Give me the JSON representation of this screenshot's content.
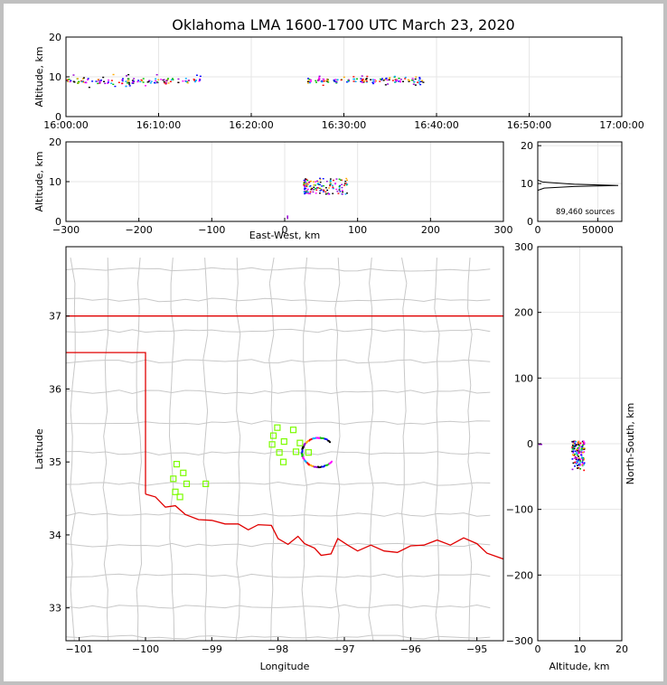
{
  "chart_data": {
    "type": "scatter",
    "title": "Oklahoma LMA 1600-1700 UTC March 23, 2020",
    "colors": {
      "state_border": "#e00000",
      "county_border": "#c8c8c8",
      "station": "#7cfc00",
      "time_line": "#000000"
    },
    "panels": [
      {
        "id": "time-altitude",
        "ylabel": "Altitude, km",
        "ylim": [
          0,
          20
        ],
        "yticks": [
          0,
          10,
          20
        ],
        "xlim_minutes": [
          0,
          60
        ],
        "xticks": [
          {
            "value": 0,
            "label": "16:00:00"
          },
          {
            "value": 10,
            "label": "16:10:00"
          },
          {
            "value": 20,
            "label": "16:20:00"
          },
          {
            "value": 30,
            "label": "16:30:00"
          },
          {
            "value": 40,
            "label": "16:40:00"
          },
          {
            "value": 50,
            "label": "16:50:00"
          },
          {
            "value": 60,
            "label": "17:00:00"
          }
        ],
        "source_clusters": [
          {
            "t_start": 0.0,
            "t_end": 14.5,
            "alt_min": 7.5,
            "alt_max": 10.8
          },
          {
            "t_start": 26.0,
            "t_end": 38.5,
            "alt_min": 8.0,
            "alt_max": 10.5
          }
        ]
      },
      {
        "id": "ew-altitude",
        "xlabel": "East-West, km",
        "ylabel": "Altitude, km",
        "xlim": [
          -300,
          300
        ],
        "ylim": [
          0,
          20
        ],
        "xticks": [
          -300,
          -200,
          -100,
          0,
          100,
          200,
          300
        ],
        "xtick_labels": [
          "−300",
          "−200",
          "−100",
          "0",
          "100",
          "200",
          "300"
        ],
        "yticks": [
          0,
          10,
          20
        ],
        "source_clusters": [
          {
            "x_min": 25,
            "x_max": 85,
            "alt_min": 7.0,
            "alt_max": 11.0
          }
        ]
      },
      {
        "id": "altitude-histogram",
        "xlim": [
          0,
          70000
        ],
        "ylim": [
          0,
          21
        ],
        "xticks": [
          0,
          50000
        ],
        "yticks": [
          0,
          10,
          20
        ],
        "annotation": "89,460 sources",
        "peak_altitude_km": 9.5,
        "peak_count": 67000
      },
      {
        "id": "plan-view",
        "xlabel": "Longitude",
        "ylabel": "Latitude",
        "xlim": [
          -101.2,
          -94.6
        ],
        "ylim": [
          32.55,
          37.95
        ],
        "xticks": [
          -101,
          -100,
          -99,
          -98,
          -97,
          -96,
          -95
        ],
        "xtick_labels": [
          "−101",
          "−100",
          "−99",
          "−98",
          "−97",
          "−96",
          "−95"
        ],
        "yticks": [
          33,
          34,
          35,
          36,
          37
        ],
        "stations": [
          [
            -99.53,
            34.97
          ],
          [
            -99.43,
            34.85
          ],
          [
            -99.58,
            34.77
          ],
          [
            -99.38,
            34.7
          ],
          [
            -99.55,
            34.59
          ],
          [
            -99.48,
            34.52
          ],
          [
            -99.09,
            34.7
          ],
          [
            -98.01,
            35.47
          ],
          [
            -98.07,
            35.36
          ],
          [
            -98.09,
            35.24
          ],
          [
            -97.91,
            35.28
          ],
          [
            -97.98,
            35.13
          ],
          [
            -97.92,
            35.0
          ],
          [
            -97.77,
            35.44
          ],
          [
            -97.67,
            35.26
          ],
          [
            -97.73,
            35.14
          ],
          [
            -97.54,
            35.13
          ]
        ],
        "sources_arc": {
          "center": [
            -97.4,
            35.14
          ],
          "radius_lon": 0.25,
          "radius_lat": 0.2
        }
      },
      {
        "id": "ns-altitude",
        "xlabel": "Altitude, km",
        "ylabel": "North-South, km",
        "xlim": [
          0,
          20
        ],
        "ylim": [
          -300,
          300
        ],
        "xticks": [
          0,
          10,
          20
        ],
        "yticks": [
          -300,
          -200,
          -100,
          0,
          100,
          200,
          300
        ],
        "ytick_labels": [
          "−300",
          "−200",
          "−100",
          "0",
          "100",
          "200",
          "300"
        ],
        "source_clusters": [
          {
            "alt_min": 8.0,
            "alt_max": 11.0,
            "y_min": -40,
            "y_max": 5
          }
        ]
      }
    ]
  }
}
